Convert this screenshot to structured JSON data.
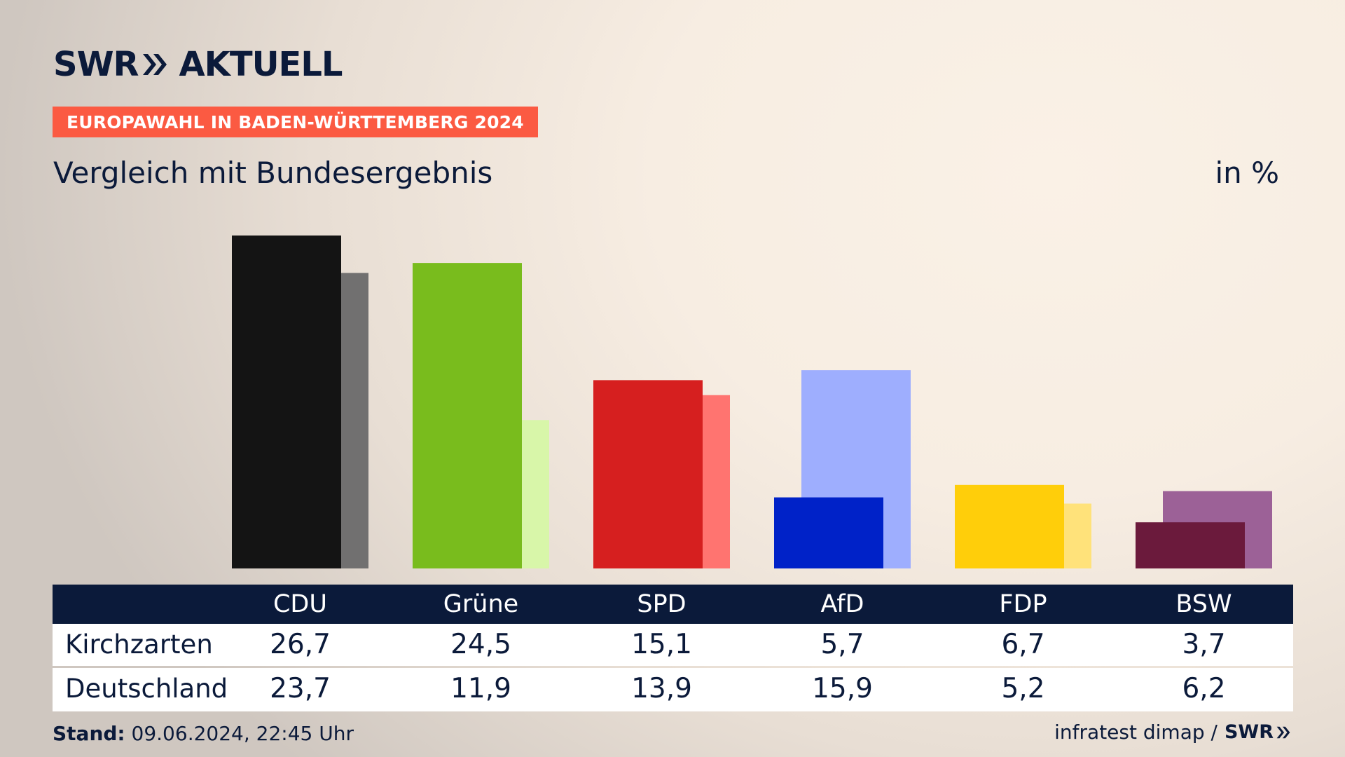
{
  "header": {
    "logo_brand": "SWR",
    "logo_title": "AKTUELL",
    "event_label": "EUROPAWAHL IN BADEN-WÜRTTEMBERG 2024",
    "subtitle": "Vergleich mit Bundesergebnis",
    "unit": "in %"
  },
  "table": {
    "row_labels": [
      "Kirchzarten",
      "Deutschland"
    ]
  },
  "footer": {
    "stand_label": "Stand:",
    "stand_value": "09.06.2024, 22:45 Uhr",
    "source": "infratest dimap /",
    "source_brand": "SWR"
  },
  "chart_data": {
    "type": "bar",
    "title": "Vergleich mit Bundesergebnis",
    "ylabel": "in %",
    "ylim": [
      0,
      26.7
    ],
    "grid": false,
    "categories": [
      "CDU",
      "Grüne",
      "SPD",
      "AfD",
      "FDP",
      "BSW"
    ],
    "series": [
      {
        "name": "Kirchzarten",
        "values": [
          26.7,
          24.5,
          15.1,
          5.7,
          6.7,
          3.7
        ],
        "labels": [
          "26,7",
          "24,5",
          "15,1",
          "5,7",
          "6,7",
          "3,7"
        ],
        "colors": [
          "#141414",
          "#79bc1d",
          "#d61f1f",
          "#0022c8",
          "#ffce0a",
          "#6b1a3c"
        ]
      },
      {
        "name": "Deutschland",
        "values": [
          23.7,
          11.9,
          13.9,
          15.9,
          5.2,
          6.2
        ],
        "labels": [
          "23,7",
          "11,9",
          "13,9",
          "15,9",
          "5,2",
          "6,2"
        ],
        "colors": [
          "#717070",
          "#d8f6a9",
          "#ff7470",
          "#9eaefe",
          "#ffe27a",
          "#9c6197"
        ]
      }
    ]
  }
}
